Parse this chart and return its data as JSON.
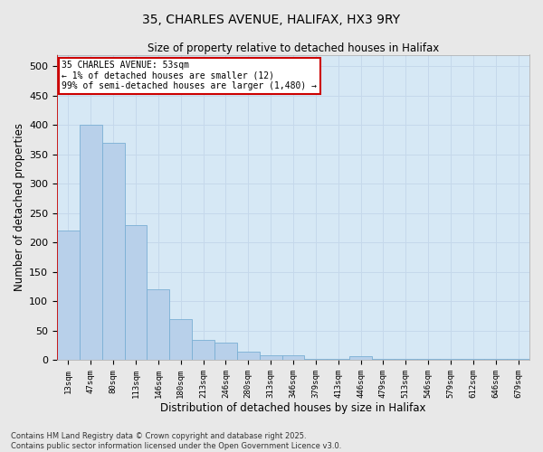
{
  "title_line1": "35, CHARLES AVENUE, HALIFAX, HX3 9RY",
  "title_line2": "Size of property relative to detached houses in Halifax",
  "xlabel": "Distribution of detached houses by size in Halifax",
  "ylabel": "Number of detached properties",
  "footnote": "Contains HM Land Registry data © Crown copyright and database right 2025.\nContains public sector information licensed under the Open Government Licence v3.0.",
  "annotation_title": "35 CHARLES AVENUE: 53sqm",
  "annotation_line2": "← 1% of detached houses are smaller (12)",
  "annotation_line3": "99% of semi-detached houses are larger (1,480) →",
  "bar_color": "#b8d0ea",
  "bar_edge_color": "#7aafd4",
  "grid_color": "#c5d8eb",
  "background_color": "#d6e8f5",
  "fig_background": "#e8e8e8",
  "vline_color": "#cc0000",
  "categories": [
    "13sqm",
    "47sqm",
    "80sqm",
    "113sqm",
    "146sqm",
    "180sqm",
    "213sqm",
    "246sqm",
    "280sqm",
    "313sqm",
    "346sqm",
    "379sqm",
    "413sqm",
    "446sqm",
    "479sqm",
    "513sqm",
    "546sqm",
    "579sqm",
    "612sqm",
    "646sqm",
    "679sqm"
  ],
  "values": [
    220,
    400,
    370,
    230,
    120,
    70,
    35,
    30,
    14,
    8,
    8,
    2,
    2,
    6,
    2,
    2,
    2,
    2,
    2,
    2,
    2
  ],
  "ylim": [
    0,
    520
  ],
  "yticks": [
    0,
    50,
    100,
    150,
    200,
    250,
    300,
    350,
    400,
    450,
    500
  ],
  "figsize": [
    6.0,
    5.0
  ],
  "dpi": 100
}
